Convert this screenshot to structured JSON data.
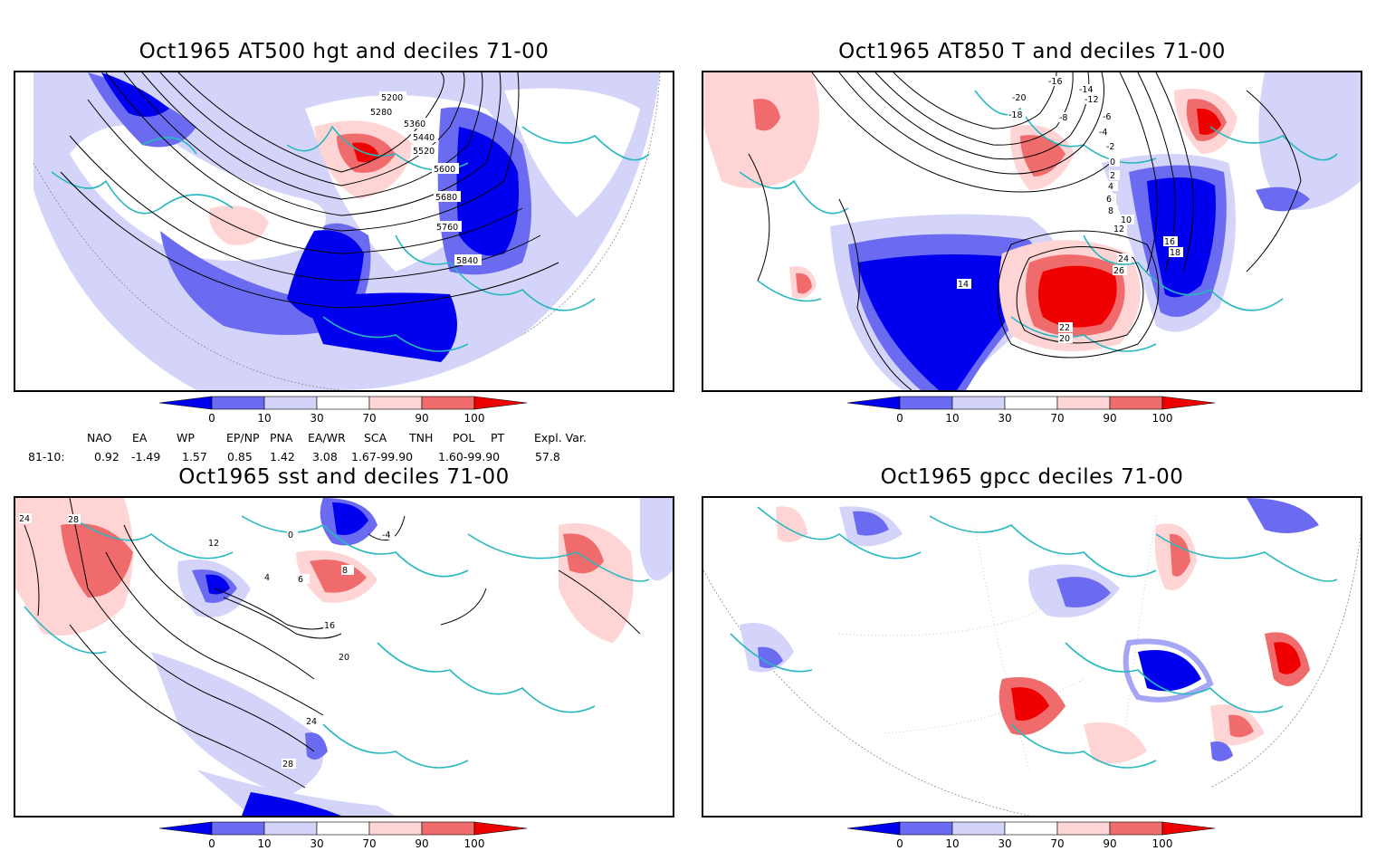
{
  "panels": {
    "tl": {
      "title": "Oct1965 AT500 hgt and deciles 71-00",
      "contour_labels": [
        "5200",
        "5280",
        "5360",
        "5440",
        "5520",
        "5600",
        "5680",
        "5760",
        "5840"
      ]
    },
    "tr": {
      "title": "Oct1965 AT850 T and deciles 71-00",
      "contour_labels": [
        "-16",
        "-14",
        "-12",
        "-20",
        "-18",
        "-8",
        "-6",
        "-4",
        "-2",
        "0",
        "2",
        "4",
        "6",
        "8",
        "10",
        "12",
        "14",
        "16",
        "18",
        "20",
        "22",
        "24",
        "26"
      ]
    },
    "bl": {
      "title": "Oct1965 sst and deciles 71-00",
      "contour_labels": [
        "24",
        "28",
        "12",
        "4",
        "6",
        "8",
        "0",
        "-4",
        "16",
        "20",
        "24",
        "28"
      ]
    },
    "br": {
      "title": "Oct1965 gpcc deciles 71-00",
      "contour_labels": []
    }
  },
  "colorbar": {
    "ticks": [
      "0",
      "10",
      "30",
      "70",
      "90",
      "100"
    ],
    "colors": [
      "#0000ee",
      "#6b6bf2",
      "#d4d4fa",
      "#ffffff",
      "#ffd4d4",
      "#f06b6b",
      "#ee0000"
    ]
  },
  "indices": {
    "names": [
      "NAO",
      "EA",
      "WP",
      "EP/NP",
      "PNA",
      "EA/WR",
      "SCA",
      "TNH",
      "POL",
      "PT",
      "Expl. Var."
    ],
    "row_label": "81-10:",
    "values": [
      "0.92",
      "-1.49",
      "1.57",
      "0.85",
      "1.42",
      "3.08",
      "1.67-99.90",
      "1.60-99.90",
      "57.8"
    ]
  }
}
